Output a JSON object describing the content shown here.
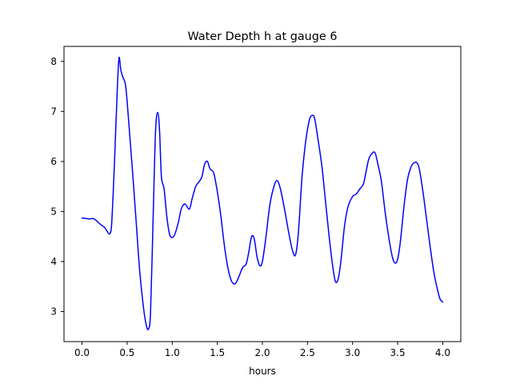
{
  "chart_data": {
    "type": "line",
    "title": "Water Depth h at gauge 6",
    "xlabel": "hours",
    "ylabel": "",
    "xlim": [
      -0.2,
      4.2
    ],
    "ylim": [
      2.4,
      8.3
    ],
    "xticks": [
      0.0,
      0.5,
      1.0,
      1.5,
      2.0,
      2.5,
      3.0,
      3.5,
      4.0
    ],
    "xtick_labels": [
      "0.0",
      "0.5",
      "1.0",
      "1.5",
      "2.0",
      "2.5",
      "3.0",
      "3.5",
      "4.0"
    ],
    "yticks": [
      3,
      4,
      5,
      6,
      7,
      8
    ],
    "ytick_labels": [
      "3",
      "4",
      "5",
      "6",
      "7",
      "8"
    ],
    "grid": false,
    "legend": "none",
    "series": [
      {
        "color": "#0000ff",
        "points": [
          [
            0.0,
            4.87
          ],
          [
            0.05,
            4.86
          ],
          [
            0.08,
            4.85
          ],
          [
            0.12,
            4.86
          ],
          [
            0.15,
            4.83
          ],
          [
            0.2,
            4.75
          ],
          [
            0.25,
            4.68
          ],
          [
            0.28,
            4.6
          ],
          [
            0.31,
            4.56
          ],
          [
            0.33,
            4.8
          ],
          [
            0.36,
            6.0
          ],
          [
            0.39,
            7.4
          ],
          [
            0.41,
            8.07
          ],
          [
            0.43,
            7.83
          ],
          [
            0.45,
            7.7
          ],
          [
            0.48,
            7.55
          ],
          [
            0.5,
            7.2
          ],
          [
            0.53,
            6.5
          ],
          [
            0.56,
            5.8
          ],
          [
            0.6,
            4.8
          ],
          [
            0.64,
            3.8
          ],
          [
            0.68,
            3.1
          ],
          [
            0.71,
            2.75
          ],
          [
            0.735,
            2.65
          ],
          [
            0.76,
            3.0
          ],
          [
            0.79,
            5.0
          ],
          [
            0.815,
            6.6
          ],
          [
            0.84,
            6.98
          ],
          [
            0.86,
            6.6
          ],
          [
            0.88,
            5.7
          ],
          [
            0.91,
            5.45
          ],
          [
            0.94,
            4.9
          ],
          [
            0.97,
            4.55
          ],
          [
            1.0,
            4.48
          ],
          [
            1.03,
            4.55
          ],
          [
            1.07,
            4.8
          ],
          [
            1.1,
            5.05
          ],
          [
            1.14,
            5.15
          ],
          [
            1.19,
            5.05
          ],
          [
            1.22,
            5.25
          ],
          [
            1.26,
            5.5
          ],
          [
            1.3,
            5.6
          ],
          [
            1.33,
            5.7
          ],
          [
            1.36,
            5.95
          ],
          [
            1.39,
            6.0
          ],
          [
            1.42,
            5.85
          ],
          [
            1.46,
            5.77
          ],
          [
            1.5,
            5.4
          ],
          [
            1.54,
            4.9
          ],
          [
            1.58,
            4.3
          ],
          [
            1.62,
            3.85
          ],
          [
            1.66,
            3.6
          ],
          [
            1.7,
            3.56
          ],
          [
            1.74,
            3.7
          ],
          [
            1.78,
            3.88
          ],
          [
            1.82,
            3.95
          ],
          [
            1.85,
            4.2
          ],
          [
            1.88,
            4.5
          ],
          [
            1.91,
            4.45
          ],
          [
            1.94,
            4.1
          ],
          [
            1.97,
            3.92
          ],
          [
            2.0,
            4.0
          ],
          [
            2.04,
            4.5
          ],
          [
            2.08,
            5.1
          ],
          [
            2.12,
            5.45
          ],
          [
            2.16,
            5.62
          ],
          [
            2.2,
            5.45
          ],
          [
            2.25,
            5.0
          ],
          [
            2.3,
            4.5
          ],
          [
            2.34,
            4.18
          ],
          [
            2.37,
            4.15
          ],
          [
            2.4,
            4.6
          ],
          [
            2.44,
            5.7
          ],
          [
            2.48,
            6.4
          ],
          [
            2.52,
            6.82
          ],
          [
            2.55,
            6.92
          ],
          [
            2.58,
            6.85
          ],
          [
            2.62,
            6.4
          ],
          [
            2.66,
            5.9
          ],
          [
            2.7,
            5.2
          ],
          [
            2.74,
            4.5
          ],
          [
            2.78,
            3.9
          ],
          [
            2.81,
            3.6
          ],
          [
            2.84,
            3.65
          ],
          [
            2.87,
            4.0
          ],
          [
            2.91,
            4.7
          ],
          [
            2.95,
            5.1
          ],
          [
            3.0,
            5.3
          ],
          [
            3.04,
            5.35
          ],
          [
            3.08,
            5.45
          ],
          [
            3.12,
            5.55
          ],
          [
            3.15,
            5.8
          ],
          [
            3.18,
            6.05
          ],
          [
            3.22,
            6.17
          ],
          [
            3.25,
            6.17
          ],
          [
            3.28,
            5.95
          ],
          [
            3.32,
            5.6
          ],
          [
            3.36,
            5.0
          ],
          [
            3.4,
            4.5
          ],
          [
            3.44,
            4.1
          ],
          [
            3.47,
            3.97
          ],
          [
            3.5,
            4.05
          ],
          [
            3.53,
            4.4
          ],
          [
            3.57,
            5.1
          ],
          [
            3.61,
            5.65
          ],
          [
            3.65,
            5.9
          ],
          [
            3.68,
            5.97
          ],
          [
            3.71,
            5.98
          ],
          [
            3.74,
            5.85
          ],
          [
            3.78,
            5.4
          ],
          [
            3.82,
            4.85
          ],
          [
            3.86,
            4.3
          ],
          [
            3.9,
            3.8
          ],
          [
            3.94,
            3.45
          ],
          [
            3.97,
            3.25
          ],
          [
            4.0,
            3.19
          ]
        ]
      }
    ]
  }
}
